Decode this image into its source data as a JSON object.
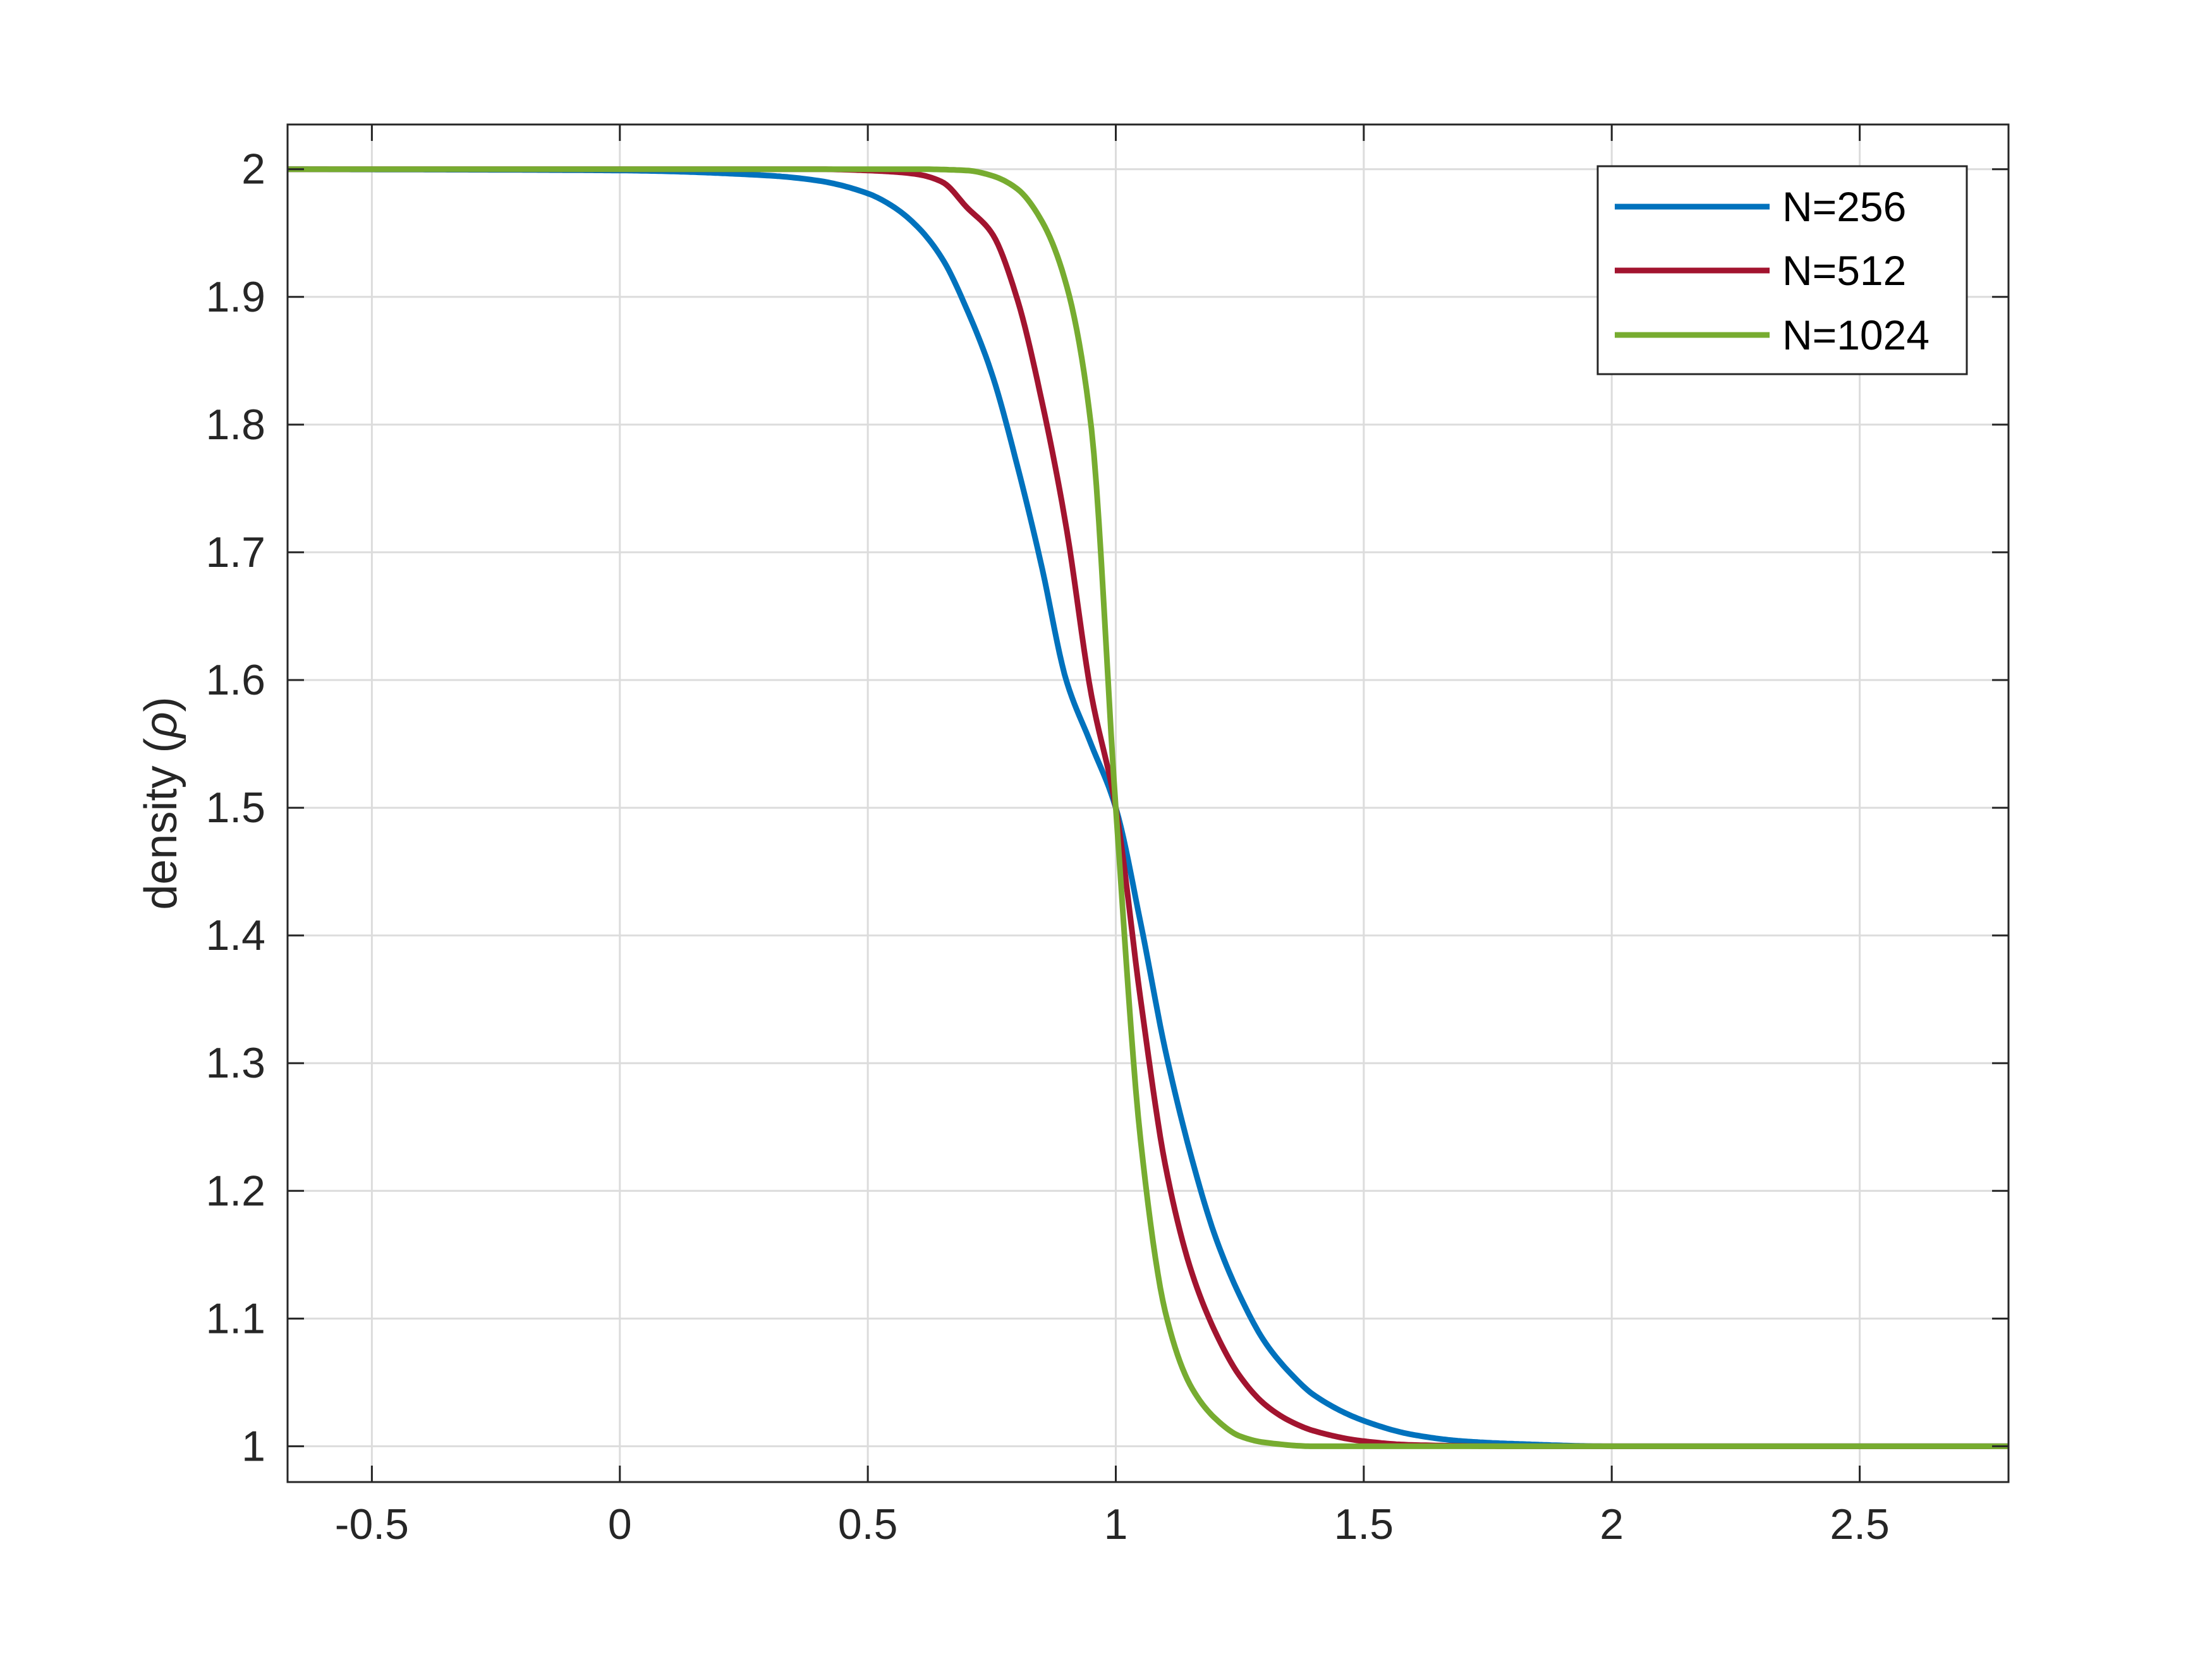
{
  "chart_data": {
    "type": "line",
    "title": "",
    "xlabel": "",
    "ylabel": "density (",
    "ylabel_symbol": "ρ",
    "ylabel_close": ")",
    "xlim": [
      -0.67,
      2.8
    ],
    "ylim": [
      0.972,
      2.035
    ],
    "xticks": [
      -0.5,
      0,
      0.5,
      1,
      1.5,
      2,
      2.5
    ],
    "xtick_labels": [
      "-0.5",
      "0",
      "0.5",
      "1",
      "1.5",
      "2",
      "2.5"
    ],
    "yticks": [
      1,
      1.1,
      1.2,
      1.3,
      1.4,
      1.5,
      1.6,
      1.7,
      1.8,
      1.9,
      2
    ],
    "ytick_labels": [
      "1",
      "1.1",
      "1.2",
      "1.3",
      "1.4",
      "1.5",
      "1.6",
      "1.7",
      "1.8",
      "1.9",
      "2"
    ],
    "grid": true,
    "legend_position": "top-right",
    "series": [
      {
        "name": "N=256",
        "color": "#0072BD",
        "x": [
          -0.67,
          0.0,
          0.3,
          0.4,
          0.5,
          0.55,
          0.6,
          0.65,
          0.7,
          0.75,
          0.8,
          0.85,
          0.9,
          0.95,
          1.0,
          1.05,
          1.1,
          1.15,
          1.2,
          1.25,
          1.3,
          1.35,
          1.4,
          1.5,
          1.6,
          1.7,
          1.8,
          2.0,
          2.8
        ],
        "y": [
          2.0,
          1.999,
          1.995,
          1.991,
          1.981,
          1.971,
          1.955,
          1.93,
          1.89,
          1.84,
          1.77,
          1.69,
          1.6,
          1.55,
          1.5,
          1.41,
          1.31,
          1.23,
          1.165,
          1.118,
          1.082,
          1.058,
          1.04,
          1.02,
          1.009,
          1.004,
          1.002,
          1.0,
          1.0
        ]
      },
      {
        "name": "N=512",
        "color": "#A2142F",
        "x": [
          -0.67,
          0.4,
          0.5,
          0.55,
          0.6,
          0.65,
          0.7,
          0.75,
          0.8,
          0.85,
          0.9,
          0.95,
          1.0,
          1.05,
          1.1,
          1.15,
          1.2,
          1.25,
          1.3,
          1.35,
          1.4,
          1.5,
          1.6,
          1.8,
          2.8
        ],
        "y": [
          2.0,
          2.0,
          1.999,
          1.998,
          1.996,
          1.99,
          1.97,
          1.95,
          1.9,
          1.82,
          1.72,
          1.59,
          1.5,
          1.35,
          1.22,
          1.14,
          1.09,
          1.055,
          1.033,
          1.02,
          1.012,
          1.004,
          1.001,
          1.0,
          1.0
        ]
      },
      {
        "name": "N=1024",
        "color": "#77AC30",
        "x": [
          -0.67,
          0.6,
          0.7,
          0.75,
          0.8,
          0.85,
          0.9,
          0.95,
          1.0,
          1.05,
          1.1,
          1.15,
          1.2,
          1.25,
          1.3,
          1.4,
          1.5,
          2.8
        ],
        "y": [
          2.0,
          2.0,
          1.999,
          1.995,
          1.985,
          1.96,
          1.91,
          1.8,
          1.5,
          1.24,
          1.105,
          1.048,
          1.022,
          1.008,
          1.003,
          1.0,
          1.0,
          1.0
        ]
      }
    ]
  }
}
